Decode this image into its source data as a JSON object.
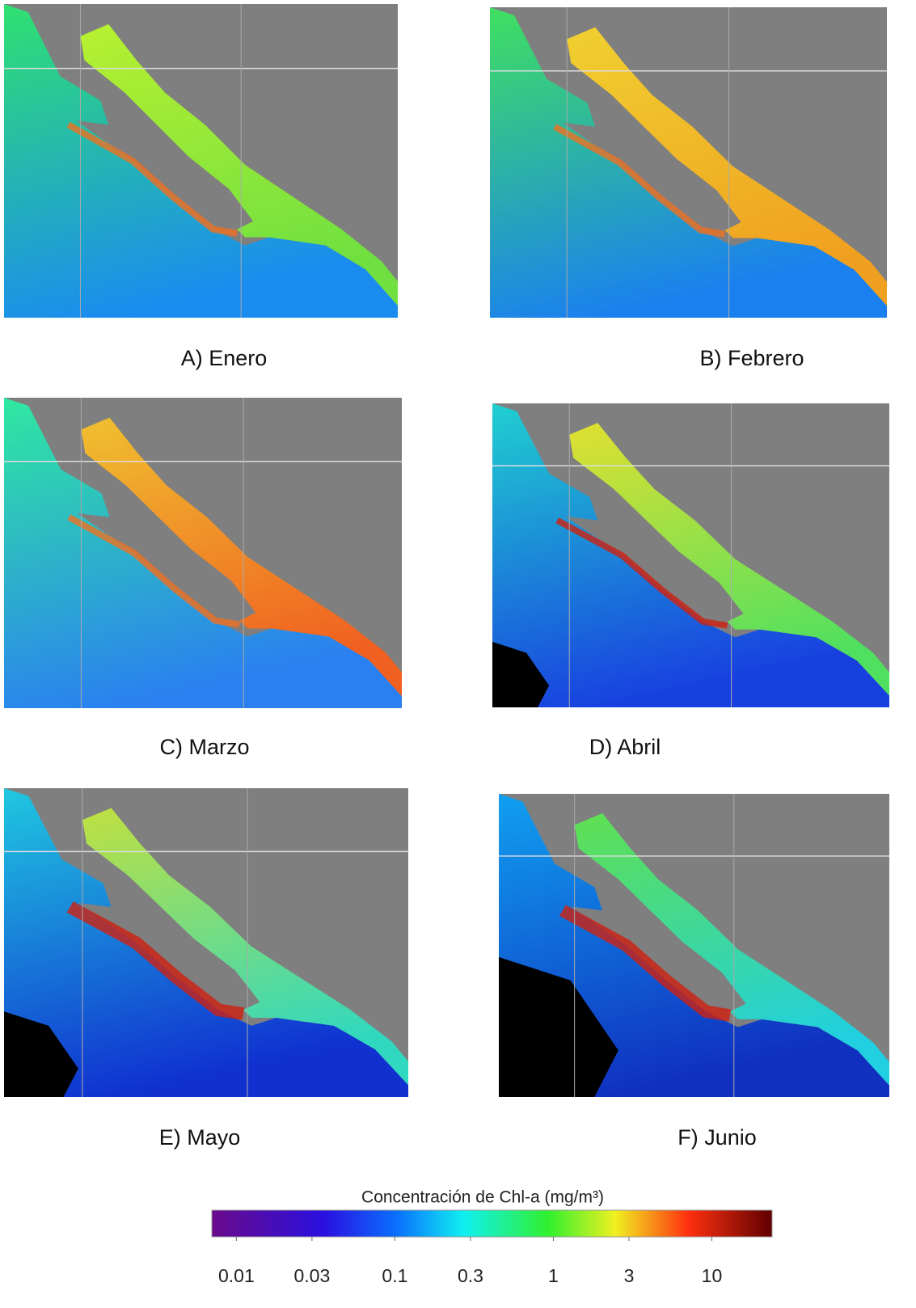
{
  "panels": [
    {
      "label": "A) Enero"
    },
    {
      "label": "B) Febrero"
    },
    {
      "label": "C) Marzo"
    },
    {
      "label": "D) Abril"
    },
    {
      "label": "E) Mayo"
    },
    {
      "label": "F) Junio"
    }
  ],
  "colorbar": {
    "title": "Concentración de Chl-a (mg/m³)",
    "scale": "log",
    "lim": [
      0.007,
      24
    ],
    "ticks": [
      0.01,
      0.03,
      0.1,
      0.3,
      1,
      3,
      10
    ]
  }
}
